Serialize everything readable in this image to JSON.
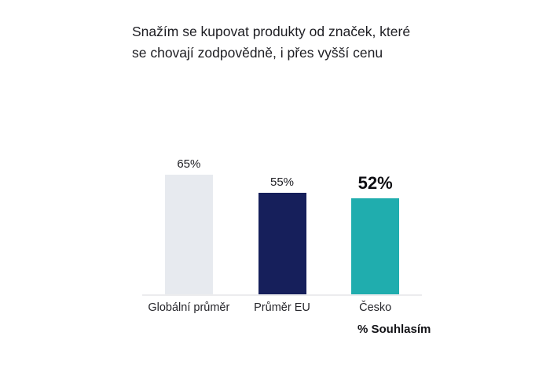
{
  "title": {
    "lines": [
      "Snažím se kupovat produkty od značek, které",
      "se chovají zodpovědně, i přes vyšší cenu"
    ]
  },
  "chart_data": {
    "type": "bar",
    "title": "Snažím se kupovat produkty od značek, které se chovají zodpovědně, i přes vyšší cenu",
    "categories": [
      "Globální průměr",
      "Průměr EU",
      "Česko"
    ],
    "values": [
      65,
      55,
      52
    ],
    "value_labels": [
      "65%",
      "55%",
      "52%"
    ],
    "highlight_index": 2,
    "colors": [
      "#E7EAEF",
      "#161F5B",
      "#20ADAE"
    ],
    "axis_line_color": "#ECECEE",
    "xlabel": "",
    "ylabel": "",
    "ylim": [
      0,
      100
    ],
    "grid": false,
    "legend": "none",
    "footnote": "% Souhlasím"
  }
}
